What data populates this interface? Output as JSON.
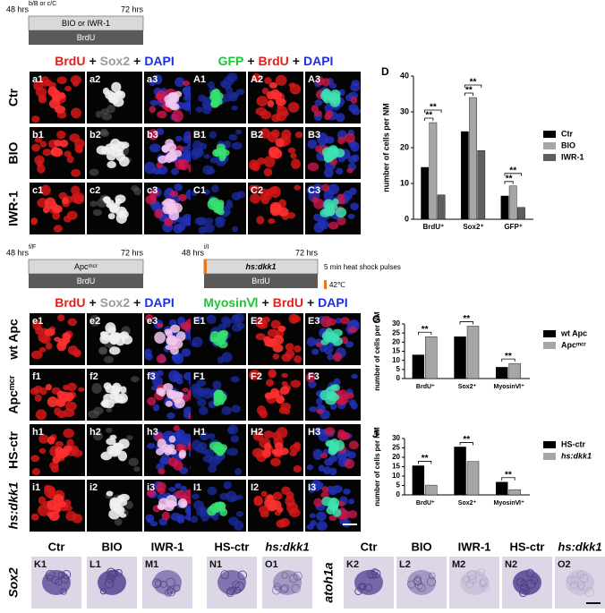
{
  "timelines": [
    {
      "marker": "b/B or c/C",
      "start": "48 hrs",
      "end": "72 hrs",
      "treatment": "BIO or IWR-1",
      "label": "BrdU"
    },
    {
      "marker": "f/F",
      "start": "48 hrs",
      "end": "72 hrs",
      "treatment": "Apcᵐᶜʳ",
      "label": "BrdU"
    },
    {
      "marker": "i/I",
      "start": "48 hrs",
      "end": "72 hrs",
      "treatment": "hs:dkk1",
      "label": "BrdU",
      "pulse_note": "5 min heat shock pulses",
      "temp": "42℃"
    }
  ],
  "grids": [
    {
      "header": [
        "BrdU",
        "+",
        "Sox2",
        "+",
        "DAPI"
      ],
      "header_colors": [
        "#e0201c",
        "#111111",
        "#9a9a9a",
        "#111111",
        "#1c2ee0"
      ],
      "panels": [
        [
          "a1",
          "a2",
          "a3"
        ],
        [
          "b1",
          "b2",
          "b3"
        ],
        [
          "c1",
          "c2",
          "c3"
        ]
      ]
    },
    {
      "header": [
        "GFP",
        "+",
        "BrdU",
        "+",
        "DAPI"
      ],
      "header_colors": [
        "#22c43a",
        "#111111",
        "#e0201c",
        "#111111",
        "#1c2ee0"
      ],
      "panels": [
        [
          "A1",
          "A2",
          "A3"
        ],
        [
          "B1",
          "B2",
          "B3"
        ],
        [
          "C1",
          "C2",
          "C3"
        ]
      ]
    },
    {
      "header": [
        "BrdU",
        "+",
        "Sox2",
        "+",
        "DAPI"
      ],
      "header_colors": [
        "#e0201c",
        "#111111",
        "#9a9a9a",
        "#111111",
        "#1c2ee0"
      ],
      "panels": [
        [
          "e1",
          "e2",
          "e3"
        ],
        [
          "f1",
          "f2",
          "f3"
        ],
        [
          "h1",
          "h2",
          "h3"
        ],
        [
          "i1",
          "i2",
          "i3"
        ]
      ]
    },
    {
      "header": [
        "MyosinⅥ",
        "+",
        "BrdU",
        "+",
        "DAPI"
      ],
      "header_colors": [
        "#22c43a",
        "#111111",
        "#e0201c",
        "#111111",
        "#1c2ee0"
      ],
      "panels": [
        [
          "E1",
          "E2",
          "E3"
        ],
        [
          "F1",
          "F2",
          "F3"
        ],
        [
          "H1",
          "H2",
          "H3"
        ],
        [
          "I1",
          "I2",
          "I3"
        ]
      ]
    }
  ],
  "row_labels": [
    [
      "Ctr",
      "BIO",
      "IWR-1"
    ],
    [
      "wt Apc",
      "Apcᵐᶜʳ",
      "HS-ctr",
      "hs:dkk1"
    ]
  ],
  "bottom": {
    "genes": [
      "Sox2",
      "atoh1a"
    ],
    "panels": [
      [
        {
          "title": "Ctr",
          "label": "K1"
        },
        {
          "title": "BIO",
          "label": "L1"
        },
        {
          "title": "IWR-1",
          "label": "M1"
        },
        {
          "title": "HS-ctr",
          "label": "N1"
        },
        {
          "title": "hs:dkk1",
          "label": "O1"
        }
      ],
      [
        {
          "title": "Ctr",
          "label": "K2"
        },
        {
          "title": "BIO",
          "label": "L2"
        },
        {
          "title": "IWR-1",
          "label": "M2"
        },
        {
          "title": "HS-ctr",
          "label": "N2"
        },
        {
          "title": "hs:dkk1",
          "label": "O2"
        }
      ]
    ]
  },
  "chart_data": [
    {
      "type": "bar",
      "label": "D",
      "ylabel": "number of cells per NM",
      "categories": [
        "BrdU⁺",
        "Sox2⁺",
        "GFP⁺"
      ],
      "series": [
        {
          "name": "Ctr",
          "color": "#000000",
          "values": [
            14.5,
            24.5,
            6.5
          ]
        },
        {
          "name": "BIO",
          "color": "#a6a6a6",
          "values": [
            27,
            34,
            9.3
          ]
        },
        {
          "name": "IWR-1",
          "color": "#5e5e5e",
          "values": [
            6.8,
            19.2,
            3.3
          ]
        }
      ],
      "ylim": [
        0,
        40
      ],
      "yticks": [
        0,
        10,
        20,
        30,
        40
      ],
      "legend": "right",
      "significance": [
        "**",
        "**",
        "**",
        "**",
        "**",
        "**"
      ]
    },
    {
      "type": "bar",
      "label": "G",
      "ylabel": "number of cells per NM",
      "categories": [
        "BrdU⁺",
        "Sox2⁺",
        "MyosinⅥ⁺"
      ],
      "series": [
        {
          "name": "wt Apc",
          "color": "#000000",
          "values": [
            13,
            23,
            6.2
          ]
        },
        {
          "name": "Apcᵐᶜʳ",
          "color": "#a6a6a6",
          "values": [
            23,
            28.8,
            8.3
          ]
        }
      ],
      "ylim": [
        0,
        30
      ],
      "yticks": [
        0,
        5,
        10,
        15,
        20,
        25,
        30
      ],
      "legend": "right",
      "significance": [
        "**",
        "**",
        "**"
      ]
    },
    {
      "type": "bar",
      "label": "J",
      "ylabel": "number of cells per NM",
      "categories": [
        "BrdU⁺",
        "Sox2⁺",
        "MyosinⅥ⁺"
      ],
      "series": [
        {
          "name": "HS-ctr",
          "color": "#000000",
          "values": [
            15.5,
            25.5,
            6.8
          ]
        },
        {
          "name": "hs:dkk1",
          "color": "#a6a6a6",
          "values": [
            5.2,
            17.8,
            2.8
          ]
        }
      ],
      "ylim": [
        0,
        30
      ],
      "yticks": [
        0,
        5,
        10,
        15,
        20,
        25,
        30
      ],
      "legend": "right",
      "significance": [
        "**",
        "**",
        "**"
      ]
    }
  ]
}
